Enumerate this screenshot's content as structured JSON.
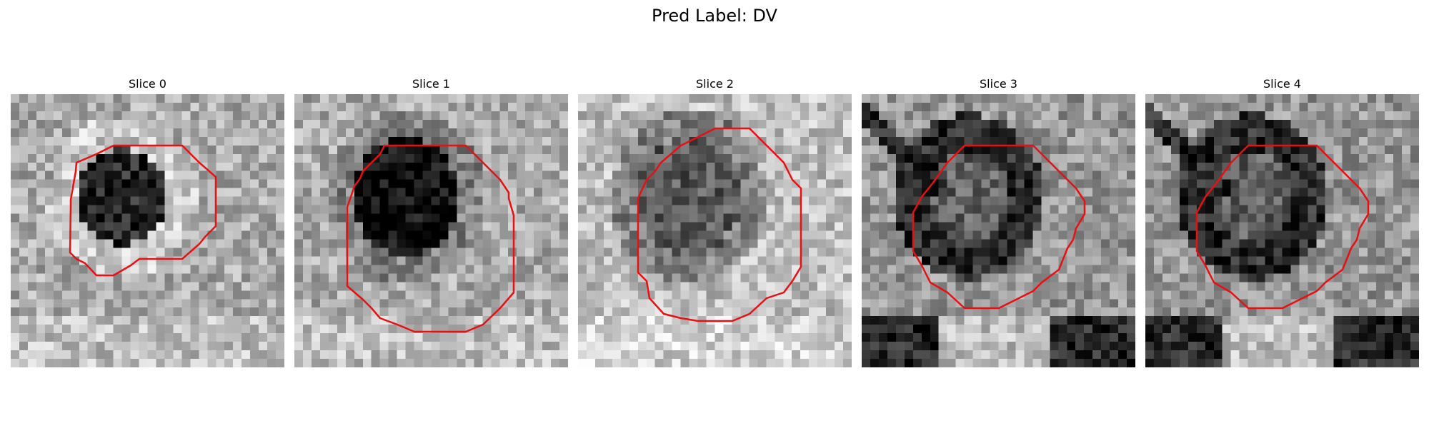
{
  "figure": {
    "title": "Pred Label: DV"
  },
  "panels": [
    {
      "title": "Slice 0"
    },
    {
      "title": "Slice 1"
    },
    {
      "title": "Slice 2"
    },
    {
      "title": "Slice 3"
    },
    {
      "title": "Slice 4"
    }
  ],
  "colors": {
    "contour": "#e81010",
    "background": "#ffffff"
  }
}
